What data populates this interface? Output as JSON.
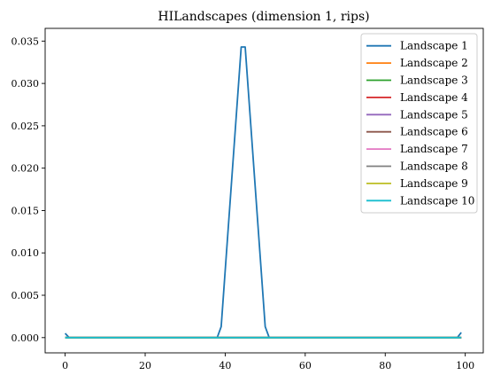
{
  "chart_data": {
    "type": "line",
    "title": "HILandscapes (dimension 1, rips)",
    "xlabel": "",
    "ylabel": "",
    "xlim": [
      -5,
      104.5
    ],
    "ylim": [
      -0.0018,
      0.0365
    ],
    "x_ticks": [
      0,
      20,
      40,
      60,
      80,
      100
    ],
    "y_ticks": [
      0.0,
      0.005,
      0.01,
      0.015,
      0.02,
      0.025,
      0.03,
      0.035
    ],
    "y_tick_labels": [
      "0.000",
      "0.005",
      "0.010",
      "0.015",
      "0.020",
      "0.025",
      "0.030",
      "0.035"
    ],
    "x_tick_labels": [
      "0",
      "20",
      "40",
      "60",
      "80",
      "100"
    ],
    "grid": false,
    "legend_position": "top-right",
    "series": [
      {
        "name": "Landscape 1",
        "color": "#1f77b4",
        "points": [
          [
            0,
            0.0005
          ],
          [
            1,
            0.0
          ],
          [
            2,
            0.0
          ],
          [
            38,
            0.0
          ],
          [
            39,
            0.0013
          ],
          [
            44,
            0.0343
          ],
          [
            45,
            0.0343
          ],
          [
            50,
            0.0013
          ],
          [
            51,
            0.0
          ],
          [
            98,
            0.0
          ],
          [
            99,
            0.0006
          ]
        ]
      },
      {
        "name": "Landscape 2",
        "color": "#ff7f0e",
        "points": [
          [
            0,
            0.0
          ],
          [
            99,
            0.0
          ]
        ]
      },
      {
        "name": "Landscape 3",
        "color": "#2ca02c",
        "points": [
          [
            0,
            0.0
          ],
          [
            99,
            0.0
          ]
        ]
      },
      {
        "name": "Landscape 4",
        "color": "#d62728",
        "points": [
          [
            0,
            0.0
          ],
          [
            99,
            0.0
          ]
        ]
      },
      {
        "name": "Landscape 5",
        "color": "#9467bd",
        "points": [
          [
            0,
            0.0
          ],
          [
            99,
            0.0
          ]
        ]
      },
      {
        "name": "Landscape 6",
        "color": "#8c564b",
        "points": [
          [
            0,
            0.0
          ],
          [
            99,
            0.0
          ]
        ]
      },
      {
        "name": "Landscape 7",
        "color": "#e377c2",
        "points": [
          [
            0,
            0.0
          ],
          [
            99,
            0.0
          ]
        ]
      },
      {
        "name": "Landscape 8",
        "color": "#7f7f7f",
        "points": [
          [
            0,
            0.0
          ],
          [
            99,
            0.0
          ]
        ]
      },
      {
        "name": "Landscape 9",
        "color": "#bcbd22",
        "points": [
          [
            0,
            0.0
          ],
          [
            99,
            0.0
          ]
        ]
      },
      {
        "name": "Landscape 10",
        "color": "#17becf",
        "points": [
          [
            0,
            0.0
          ],
          [
            99,
            0.0
          ]
        ]
      }
    ]
  }
}
